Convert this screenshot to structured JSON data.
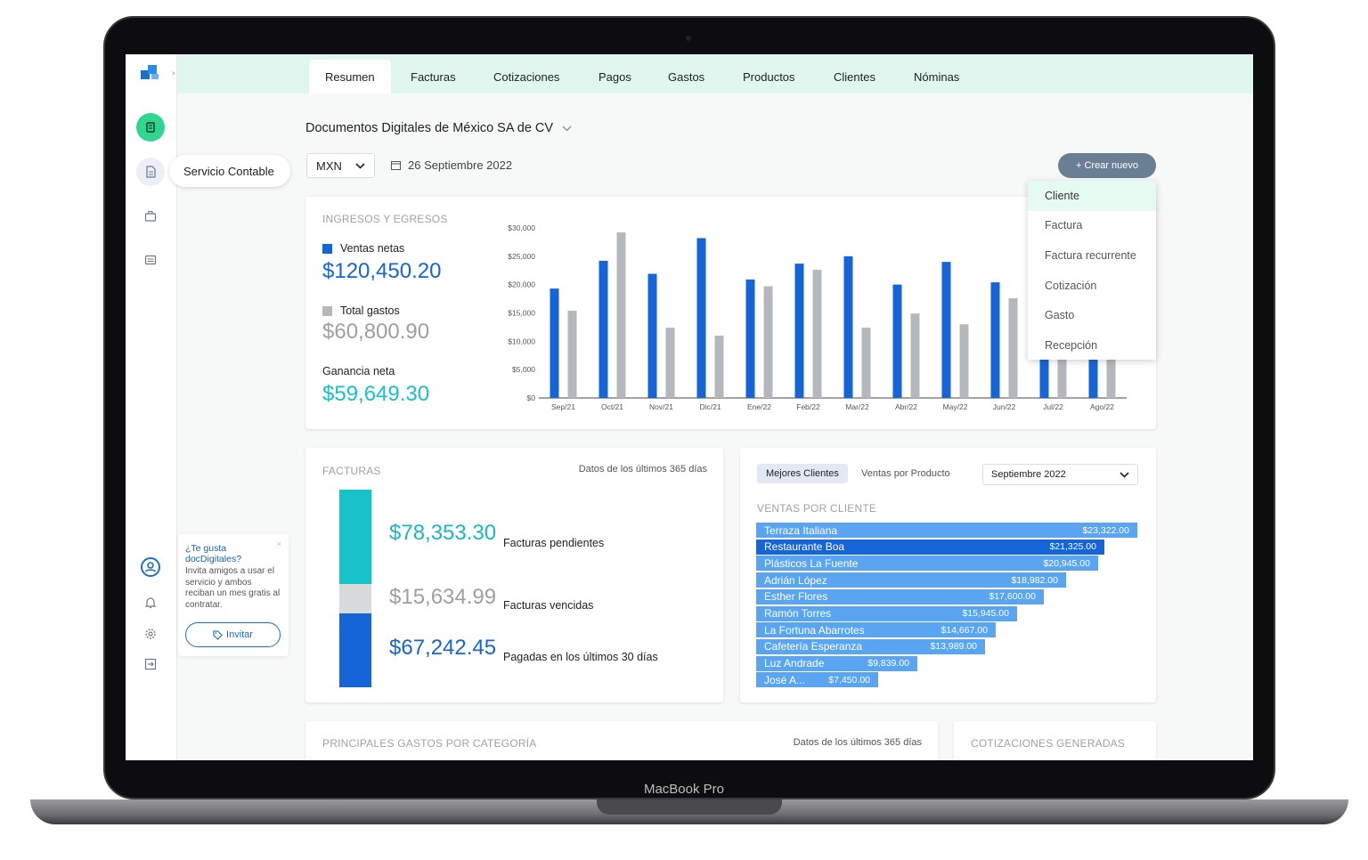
{
  "device": {
    "label": "MacBook Pro"
  },
  "sidebar": {
    "tooltip": "Servicio Contable",
    "promo": {
      "title": "¿Te gusta docDigitales?",
      "body": "Invita amigos a usar el servicio y ambos reciban un mes gratis al contratar.",
      "button": "Invitar"
    }
  },
  "tabs": [
    "Resumen",
    "Facturas",
    "Cotizaciones",
    "Pagos",
    "Gastos",
    "Productos",
    "Clientes",
    "Nóminas"
  ],
  "header": {
    "company": "Documentos Digitales de México SA de CV",
    "currency": "MXN",
    "date": "26 Septiembre 2022",
    "create_button": "+ Crear nuevo"
  },
  "create_menu": [
    "Cliente",
    "Factura",
    "Factura recurrente",
    "Cotización",
    "Gasto",
    "Recepción"
  ],
  "income": {
    "title": "INGRESOS Y EGRESOS",
    "net_sales_label": "Ventas netas",
    "net_sales_value": "$120,450.20",
    "expenses_label": "Total gastos",
    "expenses_value": "$60,800.90",
    "profit_label": "Ganancia neta",
    "profit_value": "$59,649.30"
  },
  "chart_data": {
    "type": "bar",
    "categories": [
      "Sep/21",
      "Oct/21",
      "Nov/21",
      "Dic/21",
      "Ene/22",
      "Feb/22",
      "Mar/22",
      "Abr/22",
      "May/22",
      "Jun/22",
      "Jul/22",
      "Ago/22"
    ],
    "series": [
      {
        "name": "Ventas netas",
        "color": "#1565d8",
        "values": [
          19300,
          24200,
          21900,
          28200,
          20900,
          23700,
          25000,
          20000,
          24000,
          20400,
          14000,
          15000
        ]
      },
      {
        "name": "Total gastos",
        "color": "#b4b8bd",
        "values": [
          15400,
          29200,
          12400,
          11000,
          19700,
          22600,
          12400,
          14900,
          13000,
          17600,
          8000,
          8000
        ]
      }
    ],
    "ylim": [
      0,
      30000
    ],
    "yticks": [
      "$0",
      "$5,000",
      "$10,000",
      "$15,000",
      "$20,000",
      "$25,000",
      "$30,000"
    ],
    "grid": false
  },
  "invoices": {
    "title": "FACTURAS",
    "note": "Datos de los últimos 365 días",
    "pending_value": "$78,353.30",
    "pending_label": "Facturas pendientes",
    "overdue_value": "$15,634.99",
    "overdue_label": "Facturas vencidas",
    "paid_value": "$67,242.45",
    "paid_label": "Pagadas en los últimos 30 días",
    "colors": {
      "pending": "#17c2c8",
      "overdue": "#d8dadc",
      "paid": "#1565d8"
    }
  },
  "clients": {
    "tab_active": "Mejores Clientes",
    "tab_other": "Ventas por Producto",
    "period": "Septiembre 2022",
    "title": "VENTAS POR CLIENTE",
    "rows": [
      {
        "name": "Terraza Italiana",
        "value": "$23,322.00",
        "amount": 23322
      },
      {
        "name": "Restaurante Boa",
        "value": "$21,325.00",
        "amount": 21325
      },
      {
        "name": "Plásticos La Fuente",
        "value": "$20,945.00",
        "amount": 20945
      },
      {
        "name": "Adrián López",
        "value": "$18,982.00",
        "amount": 18982
      },
      {
        "name": "Esther Flores",
        "value": "$17,600.00",
        "amount": 17600
      },
      {
        "name": "Ramón Torres",
        "value": "$15,945.00",
        "amount": 15945
      },
      {
        "name": "La Fortuna Abarrotes",
        "value": "$14,667.00",
        "amount": 14667
      },
      {
        "name": "Cafetería Esperanza",
        "value": "$13,989.00",
        "amount": 13989
      },
      {
        "name": "Luz Andrade",
        "value": "$9,839.00",
        "amount": 9839
      },
      {
        "name": "José A...",
        "value": "$7,450.00",
        "amount": 7450
      }
    ]
  },
  "expenses_card": {
    "title": "PRINCIPALES GASTOS POR CATEGORÍA",
    "note": "Datos de los últimos 365 días"
  },
  "quotes_card": {
    "title": "COTIZACIONES GENERADAS"
  }
}
